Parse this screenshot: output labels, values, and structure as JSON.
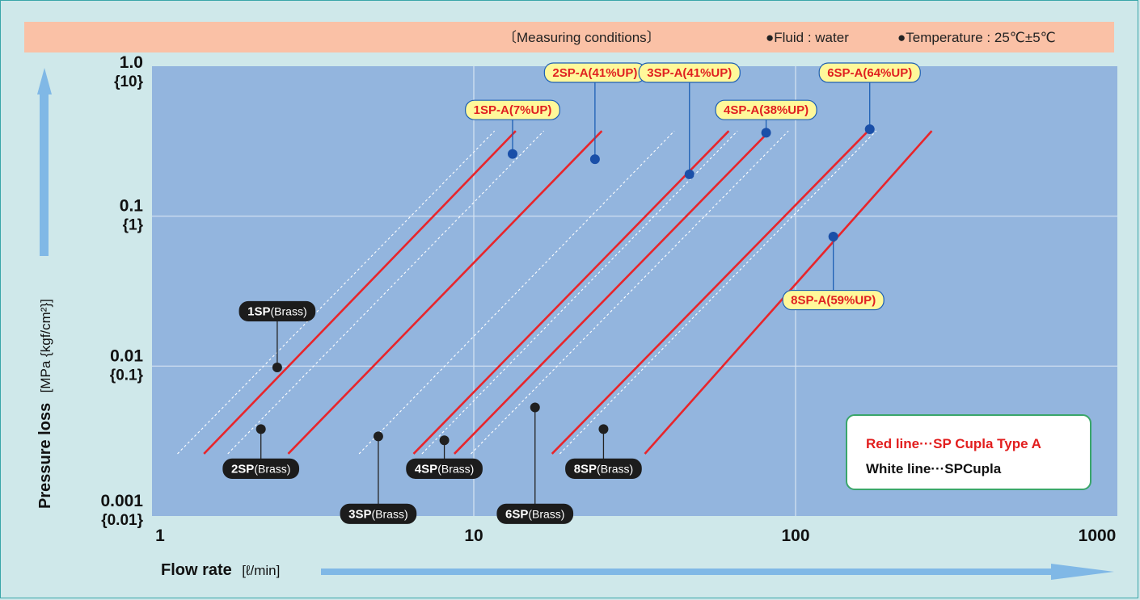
{
  "conditions": {
    "heading": "〔Measuring conditions〕",
    "fluid": "●Fluid : water",
    "temperature": "●Temperature : 25℃±5℃"
  },
  "chart_data": {
    "type": "line",
    "x_scale": "log",
    "y_scale": "log",
    "xlim": [
      1,
      1000
    ],
    "ylim": [
      0.001,
      1.0
    ],
    "xlabel": "Flow rate",
    "xlabel_unit": "[ℓ/min]",
    "ylabel": "Pressure loss",
    "ylabel_unit": "[MPa {kgf/cm²}]",
    "x_ticks": [
      "1",
      "10",
      "100",
      "1000"
    ],
    "y_ticks": [
      {
        "main": "1.0",
        "sub": "{10}",
        "value": 1.0
      },
      {
        "main": "0.1",
        "sub": "{1}",
        "value": 0.1
      },
      {
        "main": "0.01",
        "sub": "{0.1}",
        "value": 0.01
      },
      {
        "main": "0.001",
        "sub": "{0.01}",
        "value": 0.001
      }
    ],
    "grid": true,
    "legend": {
      "placement": "bottom-right",
      "red": "Red line···SP Cupla Type A",
      "white": "White line···SPCupla"
    },
    "series": [
      {
        "name": "1SP-A(7%UP)",
        "style": "red",
        "points": [
          [
            1.45,
            0.0026
          ],
          [
            13.5,
            0.37
          ]
        ],
        "marker": [
          13.2,
          0.26
        ],
        "label_line_top": 0.44
      },
      {
        "name": "2SP-A(41%UP)",
        "style": "red",
        "points": [
          [
            2.65,
            0.0026
          ],
          [
            25,
            0.37
          ]
        ],
        "marker": [
          23.8,
          0.24
        ],
        "label_line_top": 0.78
      },
      {
        "name": "3SP-A(41%UP)",
        "style": "red",
        "points": [
          [
            6.5,
            0.0026
          ],
          [
            62,
            0.37
          ]
        ],
        "marker": [
          46.8,
          0.19
        ],
        "label_line_top": 0.78
      },
      {
        "name": "4SP-A(38%UP)",
        "style": "red",
        "points": [
          [
            8.7,
            0.0026
          ],
          [
            83,
            0.37
          ]
        ],
        "marker": [
          81,
          0.36
        ],
        "label_line_top": 0.44
      },
      {
        "name": "6SP-A(64%UP)",
        "style": "red",
        "points": [
          [
            17.5,
            0.0026
          ],
          [
            168,
            0.37
          ]
        ],
        "marker": [
          170,
          0.38
        ],
        "label_line_top": 0.78
      },
      {
        "name": "8SP-A(59%UP)",
        "style": "red",
        "points": [
          [
            34,
            0.0026
          ],
          [
            265,
            0.37
          ]
        ],
        "marker": [
          131,
          0.073
        ],
        "label_line_bottom": 0.032
      },
      {
        "name": "1SP(Brass)",
        "style": "white",
        "points": [
          [
            1.2,
            0.0026
          ],
          [
            11.6,
            0.37
          ]
        ],
        "marker": [
          2.45,
          0.0098
        ],
        "label_line_top": 0.02
      },
      {
        "name": "2SP(Brass)",
        "style": "white",
        "points": [
          [
            1.72,
            0.0026
          ],
          [
            16.5,
            0.37
          ]
        ],
        "marker": [
          2.18,
          0.0038
        ],
        "label_line_bottom": 0.0024
      },
      {
        "name": "3SP(Brass)",
        "style": "white",
        "points": [
          [
            4.4,
            0.0026
          ],
          [
            42,
            0.37
          ]
        ],
        "marker": [
          5.05,
          0.0034
        ],
        "label_line_bottom": 0.0012
      },
      {
        "name": "4SP(Brass)",
        "style": "white",
        "points": [
          [
            6.9,
            0.0026
          ],
          [
            66,
            0.37
          ]
        ],
        "marker": [
          8.1,
          0.0032
        ],
        "label_line_bottom": 0.0024
      },
      {
        "name": "6SP(Brass)",
        "style": "white",
        "points": [
          [
            9.8,
            0.0026
          ],
          [
            95,
            0.37
          ]
        ],
        "marker": [
          15.5,
          0.0053
        ],
        "label_line_bottom": 0.0012
      },
      {
        "name": "8SP(Brass)",
        "style": "white",
        "points": [
          [
            18.5,
            0.0026
          ],
          [
            178,
            0.37
          ]
        ],
        "marker": [
          25.3,
          0.0038
        ],
        "label_line_bottom": 0.0024
      }
    ]
  }
}
